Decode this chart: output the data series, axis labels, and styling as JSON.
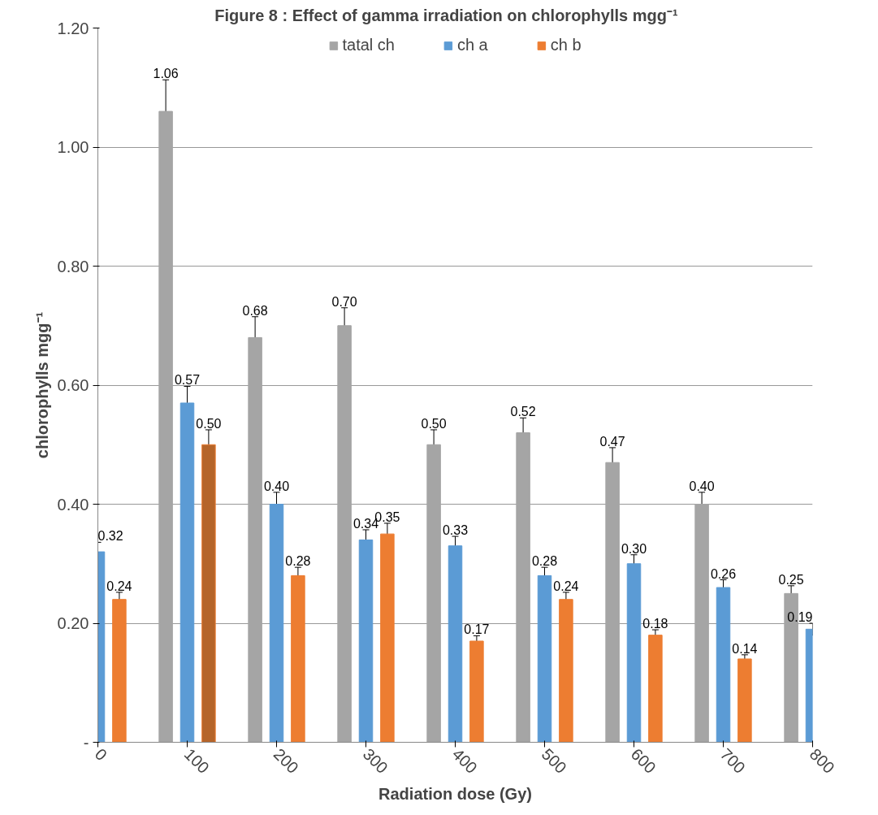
{
  "chart_data": {
    "type": "bar",
    "title": "Figure   8 :  Effect of gamma irradiation on chlorophylls  mgg⁻¹",
    "xlabel": "Radiation dose (Gy)",
    "ylabel": "chlorophylls mgg⁻¹",
    "x": [
      0,
      100,
      200,
      300,
      400,
      500,
      600,
      700,
      800
    ],
    "series": [
      {
        "name": "tatal ch",
        "color": "#a5a5a5",
        "values": [
          null,
          1.06,
          0.68,
          0.7,
          0.5,
          0.52,
          0.47,
          0.4,
          0.25
        ],
        "value_labels": [
          null,
          "1.06",
          "0.68",
          "0.70",
          "0.50",
          "0.52",
          "0.47",
          "0.40",
          "0.25"
        ],
        "errors": [
          null,
          0.053,
          0.035,
          0.03,
          0.025,
          0.025,
          0.025,
          0.02,
          0.013
        ]
      },
      {
        "name": "ch a",
        "color": "#5b9bd5",
        "values": [
          0.32,
          0.57,
          0.4,
          0.34,
          0.33,
          0.28,
          0.3,
          0.26,
          0.19
        ],
        "value_labels": [
          "0.32",
          "0.57",
          "0.40",
          "0.34",
          "0.33",
          "0.28",
          "0.30",
          "0.26",
          "0.19"
        ],
        "errors": [
          0.016,
          0.028,
          0.02,
          0.017,
          0.016,
          0.014,
          0.015,
          0.013,
          0.01
        ]
      },
      {
        "name": "ch b",
        "color": "#ed7d31",
        "colors": [
          "#ed7d31",
          "#b5652a",
          "#ed7d31",
          "#ed7d31",
          "#ed7d31",
          "#ed7d31",
          "#ed7d31",
          "#ed7d31",
          null
        ],
        "values": [
          0.24,
          0.5,
          0.28,
          0.35,
          0.17,
          0.24,
          0.18,
          0.14,
          null
        ],
        "value_labels": [
          "0.24",
          "0.50",
          "0.28",
          "0.35",
          "0.17",
          "0.24",
          "0.18",
          "0.14",
          null
        ],
        "errors": [
          0.012,
          0.025,
          0.014,
          0.018,
          0.009,
          0.012,
          0.009,
          0.007,
          null
        ]
      }
    ],
    "xlim": [
      0,
      800
    ],
    "xticks": [
      0,
      100,
      200,
      300,
      400,
      500,
      600,
      700,
      800
    ],
    "ylim": [
      0,
      1.2
    ],
    "yticks": [
      {
        "value": 0,
        "label": "-"
      },
      {
        "value": 0.2,
        "label": "0.20"
      },
      {
        "value": 0.4,
        "label": "0.40"
      },
      {
        "value": 0.6,
        "label": "0.60"
      },
      {
        "value": 0.8,
        "label": "0.80"
      },
      {
        "value": 1.0,
        "label": "1.00"
      },
      {
        "value": 1.2,
        "label": "1.20"
      }
    ],
    "grid": "y",
    "legend": "top"
  }
}
